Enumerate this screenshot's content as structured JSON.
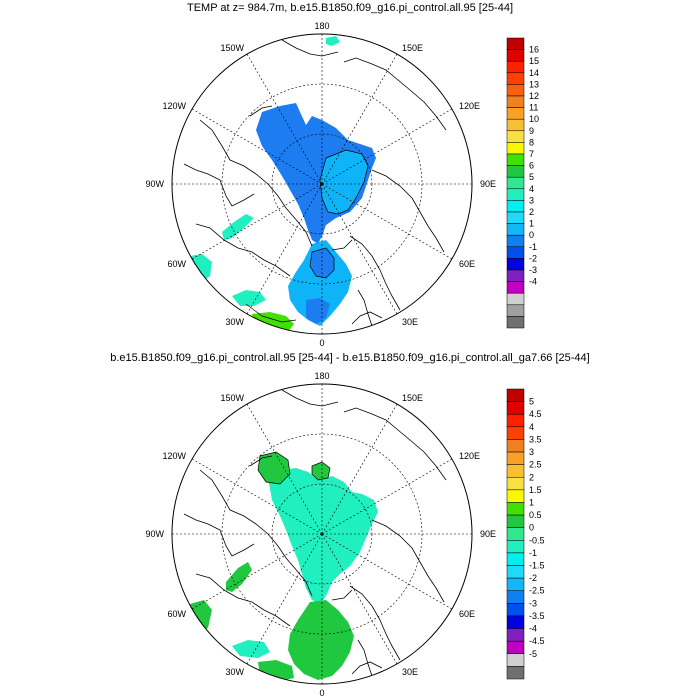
{
  "maps": [
    {
      "title": "TEMP at z= 984.7m, b.e15.B1850.f09_g16.pi_control.all.95 [25-44]",
      "lon_labels": [
        "180",
        "150E",
        "120E",
        "90E",
        "60E",
        "30E",
        "0",
        "30W",
        "60W",
        "90W",
        "120W",
        "150W"
      ],
      "colorbar": {
        "labels": [
          "16",
          "15",
          "14",
          "13",
          "12",
          "11",
          "10",
          "9",
          "8",
          "7",
          "6",
          "5",
          "4",
          "3",
          "2",
          "1",
          "0",
          "-1",
          "-2",
          "-3",
          "-4"
        ],
        "colors": [
          "#c00000",
          "#e00000",
          "#ff2000",
          "#ff4000",
          "#f86010",
          "#f08020",
          "#f8a028",
          "#f8c030",
          "#f8e040",
          "#f8f800",
          "#40e000",
          "#20c840",
          "#30e890",
          "#20f0c0",
          "#00f0f0",
          "#20d8f8",
          "#10b8f8",
          "#1080f0",
          "#0050f0",
          "#0000e0",
          "#8020c0",
          "#c000c0",
          "#d0d0d0",
          "#a0a0a0",
          "#707070"
        ]
      }
    },
    {
      "title": "b.e15.B1850.f09_g16.pi_control.all.95 [25-44] - b.e15.B1850.f09_g16.pi_control.all_ga7.66 [25-44]",
      "lon_labels": [
        "180",
        "150E",
        "120E",
        "90E",
        "60E",
        "30E",
        "0",
        "30W",
        "60W",
        "90W",
        "120W",
        "150W"
      ],
      "colorbar": {
        "labels": [
          "5",
          "4.5",
          "4",
          "3.5",
          "3",
          "2.5",
          "2",
          "1.5",
          "1",
          "0.5",
          "0",
          "-0.5",
          "-1",
          "-1.5",
          "-2",
          "-2.5",
          "-3",
          "-3.5",
          "-4",
          "-4.5",
          "-5"
        ],
        "colors": [
          "#c00000",
          "#e00000",
          "#ff2000",
          "#ff4000",
          "#f08020",
          "#f8a028",
          "#f8c030",
          "#f8e040",
          "#f8f800",
          "#40e000",
          "#20c840",
          "#30e890",
          "#20f0c0",
          "#00f0f0",
          "#20d8f8",
          "#10b8f8",
          "#1080f0",
          "#0050f0",
          "#0000e0",
          "#8020c0",
          "#c000c0",
          "#d0d0d0",
          "#707070"
        ]
      }
    }
  ]
}
